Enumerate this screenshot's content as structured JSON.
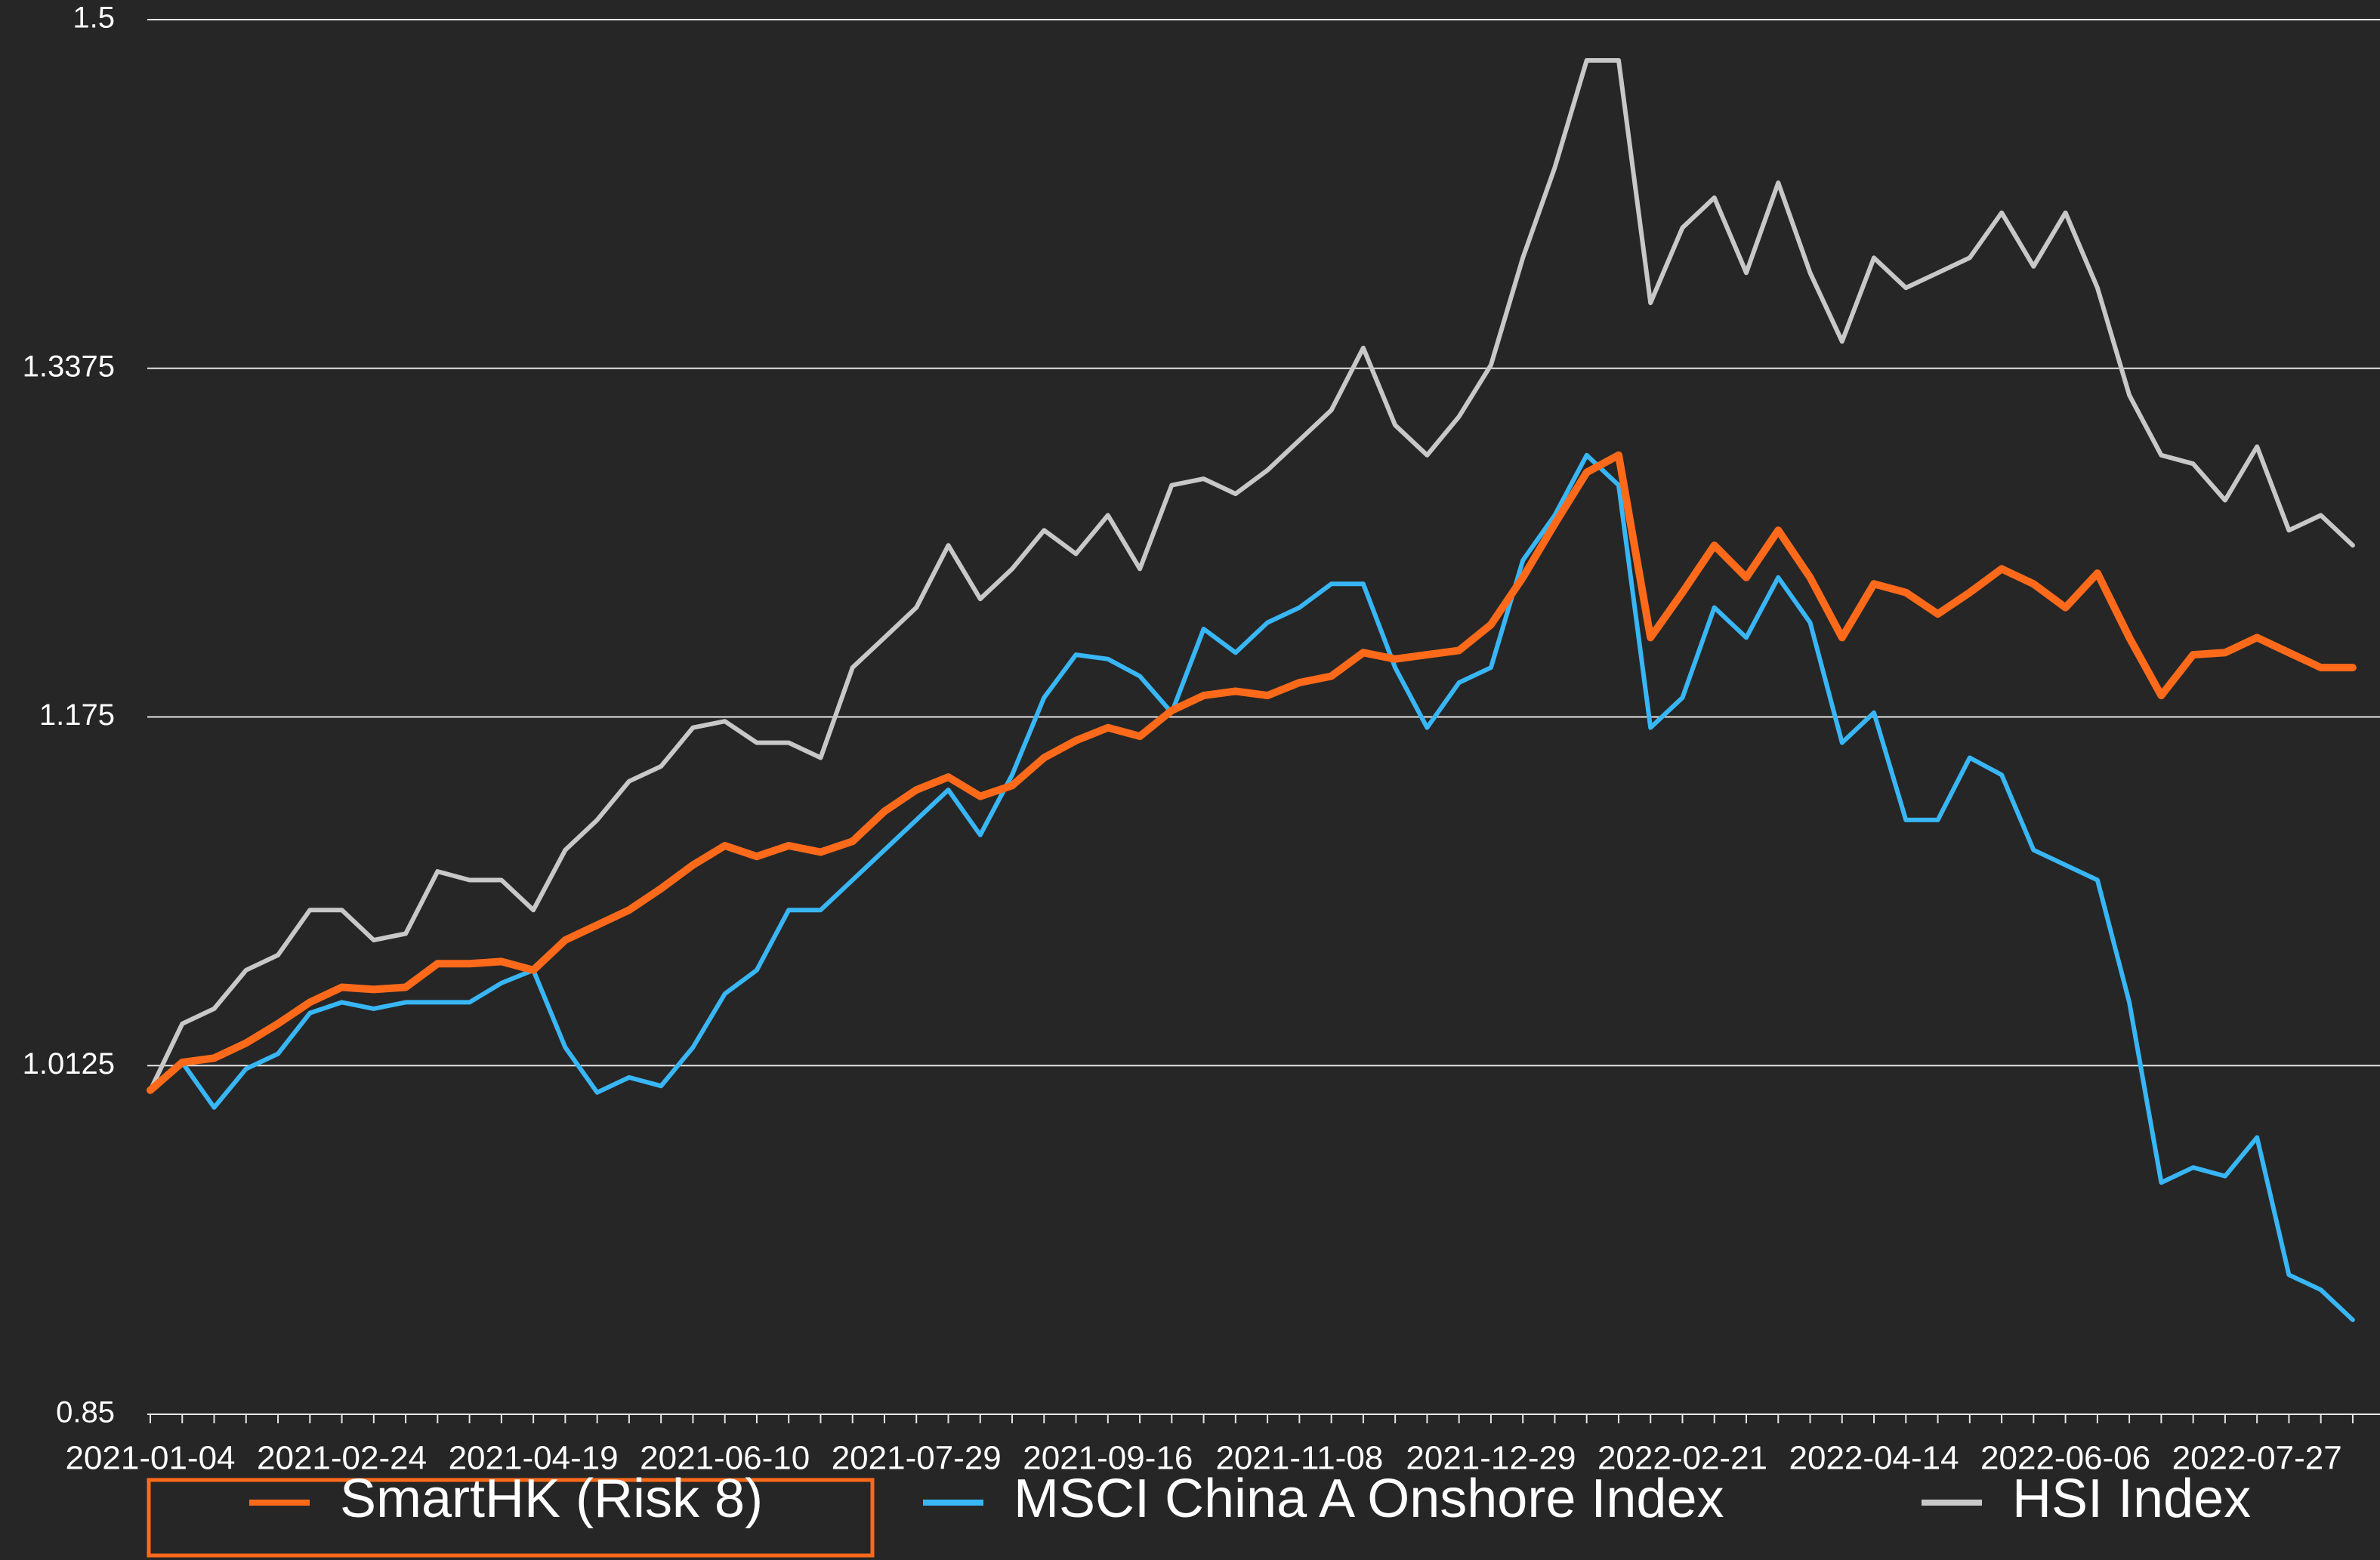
{
  "chart_data": {
    "type": "line",
    "categories": [
      "2021-01-04",
      null,
      null,
      null,
      null,
      null,
      "2021-02-24",
      null,
      null,
      null,
      null,
      null,
      "2021-04-19",
      null,
      null,
      null,
      null,
      null,
      "2021-06-10",
      null,
      null,
      null,
      null,
      null,
      "2021-07-29",
      null,
      null,
      null,
      null,
      null,
      "2021-09-16",
      null,
      null,
      null,
      null,
      null,
      "2021-11-08",
      null,
      null,
      null,
      null,
      null,
      "2021-12-29",
      null,
      null,
      null,
      null,
      null,
      "2022-02-21",
      null,
      null,
      null,
      null,
      null,
      "2022-04-14",
      null,
      null,
      null,
      null,
      null,
      "2022-06-06",
      null,
      null,
      null,
      null,
      null,
      "2022-07-27",
      null,
      null,
      null
    ],
    "series": [
      {
        "name": "SmartHK (Risk 8)",
        "color": "#ff6a1a",
        "values": [
          1.001,
          1.014,
          1.016,
          1.023,
          1.032,
          1.042,
          1.049,
          1.048,
          1.049,
          1.06,
          1.06,
          1.061,
          1.057,
          1.071,
          1.078,
          1.085,
          1.095,
          1.106,
          1.115,
          1.11,
          1.115,
          1.112,
          1.117,
          1.131,
          1.141,
          1.147,
          1.138,
          1.143,
          1.156,
          1.164,
          1.17,
          1.166,
          1.178,
          1.185,
          1.187,
          1.185,
          1.191,
          1.194,
          1.205,
          1.202,
          1.204,
          1.206,
          1.218,
          1.24,
          1.265,
          1.289,
          1.297,
          1.212,
          1.233,
          1.255,
          1.24,
          1.262,
          1.24,
          1.212,
          1.237,
          1.233,
          1.223,
          1.233,
          1.244,
          1.237,
          1.226,
          1.242,
          1.212,
          1.185,
          1.204,
          1.205,
          1.212,
          1.205,
          1.198,
          1.198
        ]
      },
      {
        "name": "MSCI China A Onshore Index",
        "color": "#38b6f5",
        "values": [
          1.001,
          1.014,
          0.993,
          1.011,
          1.018,
          1.037,
          1.042,
          1.039,
          1.042,
          1.042,
          1.042,
          1.051,
          1.057,
          1.021,
          1.0,
          1.007,
          1.003,
          1.021,
          1.046,
          1.057,
          1.085,
          1.085,
          1.099,
          1.113,
          1.127,
          1.141,
          1.12,
          1.148,
          1.184,
          1.204,
          1.202,
          1.194,
          1.177,
          1.216,
          1.205,
          1.219,
          1.226,
          1.237,
          1.237,
          1.198,
          1.17,
          1.191,
          1.198,
          1.248,
          1.269,
          1.297,
          1.283,
          1.17,
          1.184,
          1.226,
          1.212,
          1.24,
          1.219,
          1.163,
          1.177,
          1.127,
          1.127,
          1.156,
          1.148,
          1.113,
          1.106,
          1.099,
          1.042,
          0.958,
          0.965,
          0.961,
          0.979,
          0.915,
          0.908,
          0.894
        ]
      },
      {
        "name": "HSI Index",
        "color": "#c8c8c8",
        "values": [
          1.001,
          1.032,
          1.039,
          1.057,
          1.064,
          1.085,
          1.085,
          1.071,
          1.074,
          1.103,
          1.099,
          1.099,
          1.085,
          1.113,
          1.127,
          1.145,
          1.152,
          1.17,
          1.173,
          1.163,
          1.163,
          1.156,
          1.198,
          1.212,
          1.226,
          1.255,
          1.23,
          1.244,
          1.262,
          1.251,
          1.269,
          1.244,
          1.283,
          1.286,
          1.279,
          1.29,
          1.304,
          1.318,
          1.347,
          1.311,
          1.297,
          1.315,
          1.339,
          1.389,
          1.431,
          1.481,
          1.481,
          1.368,
          1.403,
          1.417,
          1.382,
          1.424,
          1.382,
          1.35,
          1.389,
          1.375,
          1.382,
          1.389,
          1.41,
          1.385,
          1.41,
          1.375,
          1.325,
          1.297,
          1.293,
          1.276,
          1.301,
          1.262,
          1.269,
          1.255
        ]
      }
    ],
    "ylim": [
      0.85,
      1.5
    ],
    "yticks": [
      0.85,
      1.0125,
      1.175,
      1.3375,
      1.5
    ],
    "grid": true,
    "legend": "bottom"
  }
}
